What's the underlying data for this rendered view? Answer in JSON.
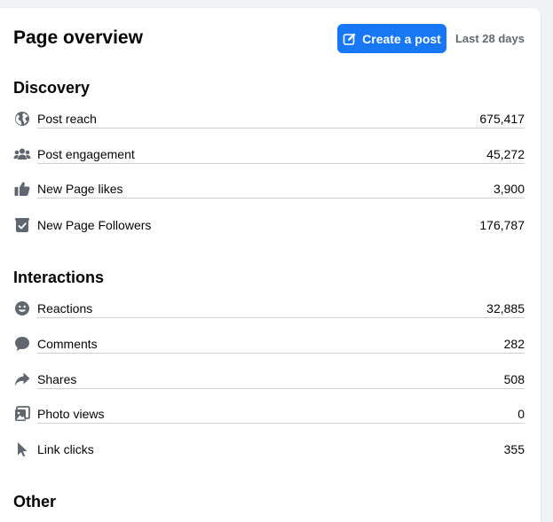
{
  "header": {
    "title": "Page overview",
    "create_post_label": "Create a post",
    "date_range": "Last 28 days"
  },
  "discovery": {
    "title": "Discovery",
    "items": [
      {
        "label": "Post reach",
        "value": "675,417",
        "icon": "globe-icon"
      },
      {
        "label": "Post engagement",
        "value": "45,272",
        "icon": "people-icon"
      },
      {
        "label": "New Page likes",
        "value": "3,900",
        "icon": "thumbs-up-icon"
      },
      {
        "label": "New Page Followers",
        "value": "176,787",
        "icon": "follow-icon"
      }
    ]
  },
  "interactions": {
    "title": "Interactions",
    "items": [
      {
        "label": "Reactions",
        "value": "32,885",
        "icon": "smiley-icon"
      },
      {
        "label": "Comments",
        "value": "282",
        "icon": "comment-icon"
      },
      {
        "label": "Shares",
        "value": "508",
        "icon": "share-icon"
      },
      {
        "label": "Photo views",
        "value": "0",
        "icon": "photo-icon"
      },
      {
        "label": "Link clicks",
        "value": "355",
        "icon": "cursor-icon"
      }
    ]
  },
  "other": {
    "title": "Other"
  },
  "colors": {
    "accent": "#1877f2",
    "icon": "#606770",
    "divider": "#ced0d4",
    "muted_text": "#65676b"
  }
}
